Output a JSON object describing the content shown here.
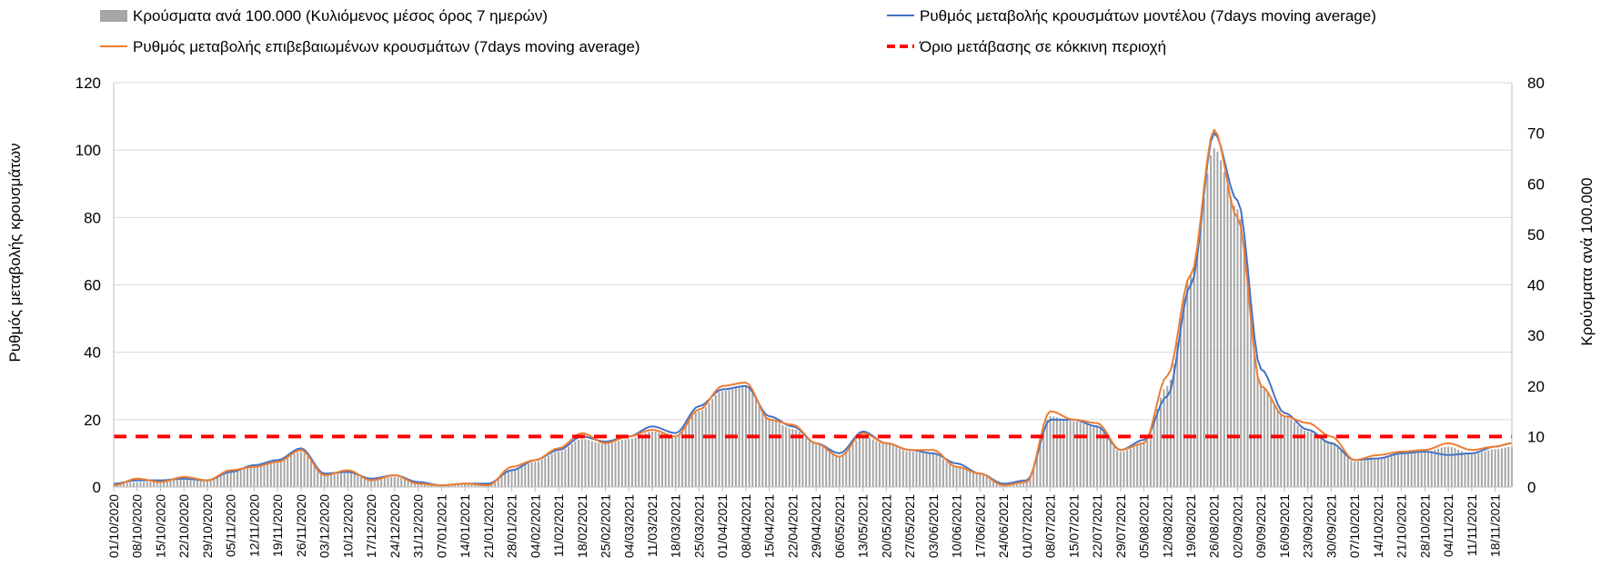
{
  "chart_data": {
    "type": "line",
    "title": "",
    "legend": {
      "placement": "top",
      "items": [
        {
          "key": "bars",
          "label": "Κρούσματα ανά 100.000 (Κυλιόμενος μέσος όρος 7 ημερών)",
          "color": "#a6a6a6",
          "style": "bar"
        },
        {
          "key": "model",
          "label": "Ρυθμός μεταβολής κρουσμάτων μοντέλου (7days moving average)",
          "color": "#4472c4",
          "style": "line"
        },
        {
          "key": "confirmed",
          "label": "Ρυθμός μεταβολής επιβεβαιωμένων κρουσμάτων (7days moving average)",
          "color": "#ed7d31",
          "style": "line"
        },
        {
          "key": "threshold",
          "label": "Όριο μετάβασης σε κόκκινη περιοχή",
          "color": "#ff0000",
          "style": "dashed"
        }
      ]
    },
    "y_left": {
      "label": "Ρυθμός μεταβολής κρουσμάτων",
      "min": 0,
      "max": 120,
      "ticks": [
        "0",
        "20",
        "40",
        "60",
        "80",
        "100",
        "120"
      ]
    },
    "y_right": {
      "label": "Κρούσματα ανά 100.000",
      "min": 0,
      "max": 80,
      "ticks": [
        "0",
        "10",
        "20",
        "30",
        "40",
        "50",
        "60",
        "70",
        "80"
      ]
    },
    "x_start": "2020-10-01",
    "x_end": "2021-11-23",
    "x_tick_labels": [
      "01/10/2020",
      "08/10/2020",
      "15/10/2020",
      "22/10/2020",
      "29/10/2020",
      "05/11/2020",
      "12/11/2020",
      "19/11/2020",
      "26/11/2020",
      "03/12/2020",
      "10/12/2020",
      "17/12/2020",
      "24/12/2020",
      "31/12/2020",
      "07/01/2021",
      "14/01/2021",
      "21/01/2021",
      "28/01/2021",
      "04/02/2021",
      "11/02/2021",
      "18/02/2021",
      "25/02/2021",
      "04/03/2021",
      "11/03/2021",
      "18/03/2021",
      "25/03/2021",
      "01/04/2021",
      "08/04/2021",
      "15/04/2021",
      "22/04/2021",
      "29/04/2021",
      "06/05/2021",
      "13/05/2021",
      "20/05/2021",
      "27/05/2021",
      "03/06/2021",
      "10/06/2021",
      "17/06/2021",
      "24/06/2021",
      "01/07/2021",
      "08/07/2021",
      "15/07/2021",
      "22/07/2021",
      "29/07/2021",
      "05/08/2021",
      "12/08/2021",
      "19/08/2021",
      "26/08/2021",
      "02/09/2021",
      "09/09/2021",
      "16/09/2021",
      "23/09/2021",
      "30/09/2021",
      "07/10/2021",
      "14/10/2021",
      "21/10/2021",
      "28/10/2021",
      "04/11/2021",
      "11/11/2021",
      "18/11/2021"
    ],
    "series": [
      {
        "name": "Ρυθμός μεταβολής κρουσμάτων μοντέλου (7days moving average)",
        "axis": "left",
        "points": [
          [
            "2020-10-01",
            1
          ],
          [
            "2020-10-08",
            2
          ],
          [
            "2020-10-15",
            2
          ],
          [
            "2020-10-22",
            2.5
          ],
          [
            "2020-10-29",
            2
          ],
          [
            "2020-11-05",
            4.5
          ],
          [
            "2020-11-12",
            6.5
          ],
          [
            "2020-11-19",
            8
          ],
          [
            "2020-11-26",
            11.5
          ],
          [
            "2020-12-03",
            4
          ],
          [
            "2020-12-10",
            4.5
          ],
          [
            "2020-12-17",
            2.5
          ],
          [
            "2020-12-24",
            3.5
          ],
          [
            "2020-12-31",
            1.5
          ],
          [
            "2021-01-07",
            0.5
          ],
          [
            "2021-01-14",
            1
          ],
          [
            "2021-01-21",
            1
          ],
          [
            "2021-01-28",
            5
          ],
          [
            "2021-02-04",
            8
          ],
          [
            "2021-02-11",
            11
          ],
          [
            "2021-02-18",
            15
          ],
          [
            "2021-02-25",
            13.5
          ],
          [
            "2021-03-04",
            15
          ],
          [
            "2021-03-11",
            18
          ],
          [
            "2021-03-18",
            16
          ],
          [
            "2021-03-25",
            24
          ],
          [
            "2021-04-01",
            29
          ],
          [
            "2021-04-08",
            30
          ],
          [
            "2021-04-15",
            21
          ],
          [
            "2021-04-22",
            18
          ],
          [
            "2021-04-29",
            13
          ],
          [
            "2021-05-06",
            10
          ],
          [
            "2021-05-13",
            16.5
          ],
          [
            "2021-05-20",
            13
          ],
          [
            "2021-05-27",
            11
          ],
          [
            "2021-06-03",
            10
          ],
          [
            "2021-06-10",
            7
          ],
          [
            "2021-06-17",
            4
          ],
          [
            "2021-06-24",
            1
          ],
          [
            "2021-07-01",
            2
          ],
          [
            "2021-07-08",
            20
          ],
          [
            "2021-07-15",
            20
          ],
          [
            "2021-07-22",
            18
          ],
          [
            "2021-07-29",
            11
          ],
          [
            "2021-08-05",
            14
          ],
          [
            "2021-08-12",
            27
          ],
          [
            "2021-08-19",
            60
          ],
          [
            "2021-08-26",
            105
          ],
          [
            "2021-09-02",
            85
          ],
          [
            "2021-09-09",
            35
          ],
          [
            "2021-09-16",
            22
          ],
          [
            "2021-09-23",
            17
          ],
          [
            "2021-09-30",
            13
          ],
          [
            "2021-10-07",
            8
          ],
          [
            "2021-10-14",
            8.5
          ],
          [
            "2021-10-21",
            10
          ],
          [
            "2021-10-28",
            10.5
          ],
          [
            "2021-11-04",
            9.5
          ],
          [
            "2021-11-11",
            10
          ],
          [
            "2021-11-18",
            12
          ],
          [
            "2021-11-23",
            13
          ]
        ]
      },
      {
        "name": "Ρυθμός μεταβολής επιβεβαιωμένων κρουσμάτων (7days moving average)",
        "axis": "left",
        "points": [
          [
            "2020-10-01",
            0.5
          ],
          [
            "2020-10-08",
            2.5
          ],
          [
            "2020-10-15",
            1.5
          ],
          [
            "2020-10-22",
            3
          ],
          [
            "2020-10-29",
            2
          ],
          [
            "2020-11-05",
            5
          ],
          [
            "2020-11-12",
            6
          ],
          [
            "2020-11-19",
            7.5
          ],
          [
            "2020-11-26",
            11
          ],
          [
            "2020-12-03",
            3.5
          ],
          [
            "2020-12-10",
            5
          ],
          [
            "2020-12-17",
            2
          ],
          [
            "2020-12-24",
            3.5
          ],
          [
            "2020-12-31",
            1
          ],
          [
            "2021-01-07",
            0.5
          ],
          [
            "2021-01-14",
            1
          ],
          [
            "2021-01-21",
            0.5
          ],
          [
            "2021-01-28",
            6
          ],
          [
            "2021-02-04",
            8
          ],
          [
            "2021-02-11",
            11.5
          ],
          [
            "2021-02-18",
            16
          ],
          [
            "2021-02-25",
            13
          ],
          [
            "2021-03-04",
            15
          ],
          [
            "2021-03-11",
            17
          ],
          [
            "2021-03-18",
            15
          ],
          [
            "2021-03-25",
            23
          ],
          [
            "2021-04-01",
            30
          ],
          [
            "2021-04-08",
            31
          ],
          [
            "2021-04-15",
            20
          ],
          [
            "2021-04-22",
            18.5
          ],
          [
            "2021-04-29",
            13
          ],
          [
            "2021-05-06",
            9
          ],
          [
            "2021-05-13",
            16
          ],
          [
            "2021-05-20",
            13
          ],
          [
            "2021-05-27",
            11
          ],
          [
            "2021-06-03",
            11
          ],
          [
            "2021-06-10",
            6
          ],
          [
            "2021-06-17",
            4
          ],
          [
            "2021-06-24",
            0.5
          ],
          [
            "2021-07-01",
            1.5
          ],
          [
            "2021-07-08",
            22.5
          ],
          [
            "2021-07-15",
            20
          ],
          [
            "2021-07-22",
            19
          ],
          [
            "2021-07-29",
            11
          ],
          [
            "2021-08-05",
            13
          ],
          [
            "2021-08-12",
            33
          ],
          [
            "2021-08-19",
            63
          ],
          [
            "2021-08-26",
            106
          ],
          [
            "2021-09-02",
            80
          ],
          [
            "2021-09-09",
            30
          ],
          [
            "2021-09-16",
            21
          ],
          [
            "2021-09-23",
            19
          ],
          [
            "2021-09-30",
            15
          ],
          [
            "2021-10-07",
            8
          ],
          [
            "2021-10-14",
            9.5
          ],
          [
            "2021-10-21",
            10.5
          ],
          [
            "2021-10-28",
            11
          ],
          [
            "2021-11-04",
            13
          ],
          [
            "2021-11-11",
            11
          ],
          [
            "2021-11-18",
            12
          ],
          [
            "2021-11-23",
            13
          ]
        ]
      },
      {
        "name": "Κρούσματα ανά 100.000 (Κυλιόμενος μέσος όρος 7 ημερών)",
        "axis": "right",
        "points": [
          [
            "2020-10-01",
            0.5
          ],
          [
            "2020-10-08",
            1
          ],
          [
            "2020-10-15",
            1
          ],
          [
            "2020-10-22",
            1.5
          ],
          [
            "2020-10-29",
            1.2
          ],
          [
            "2020-11-05",
            3
          ],
          [
            "2020-11-12",
            4
          ],
          [
            "2020-11-19",
            5
          ],
          [
            "2020-11-26",
            7
          ],
          [
            "2020-12-03",
            2.5
          ],
          [
            "2020-12-10",
            3
          ],
          [
            "2020-12-17",
            1.5
          ],
          [
            "2020-12-24",
            2
          ],
          [
            "2020-12-31",
            1
          ],
          [
            "2021-01-07",
            0.4
          ],
          [
            "2021-01-14",
            0.5
          ],
          [
            "2021-01-21",
            0.5
          ],
          [
            "2021-01-28",
            3.5
          ],
          [
            "2021-02-04",
            5
          ],
          [
            "2021-02-11",
            7
          ],
          [
            "2021-02-18",
            9.5
          ],
          [
            "2021-02-25",
            8.5
          ],
          [
            "2021-03-04",
            9.5
          ],
          [
            "2021-03-11",
            11
          ],
          [
            "2021-03-18",
            10
          ],
          [
            "2021-03-25",
            15
          ],
          [
            "2021-04-01",
            19
          ],
          [
            "2021-04-08",
            20
          ],
          [
            "2021-04-15",
            13.5
          ],
          [
            "2021-04-22",
            11.5
          ],
          [
            "2021-04-29",
            8.5
          ],
          [
            "2021-05-06",
            6
          ],
          [
            "2021-05-13",
            10
          ],
          [
            "2021-05-20",
            8.5
          ],
          [
            "2021-05-27",
            7
          ],
          [
            "2021-06-03",
            6.5
          ],
          [
            "2021-06-10",
            4
          ],
          [
            "2021-06-17",
            2.5
          ],
          [
            "2021-06-24",
            0.5
          ],
          [
            "2021-07-01",
            1
          ],
          [
            "2021-07-08",
            14
          ],
          [
            "2021-07-15",
            13
          ],
          [
            "2021-07-22",
            12
          ],
          [
            "2021-07-29",
            7
          ],
          [
            "2021-08-05",
            8.5
          ],
          [
            "2021-08-12",
            20
          ],
          [
            "2021-08-19",
            42
          ],
          [
            "2021-08-26",
            67
          ],
          [
            "2021-09-02",
            55
          ],
          [
            "2021-09-09",
            20
          ],
          [
            "2021-09-16",
            14
          ],
          [
            "2021-09-23",
            11
          ],
          [
            "2021-09-30",
            9
          ],
          [
            "2021-10-07",
            5
          ],
          [
            "2021-10-14",
            5.5
          ],
          [
            "2021-10-21",
            6.5
          ],
          [
            "2021-10-28",
            7
          ],
          [
            "2021-11-04",
            8
          ],
          [
            "2021-11-11",
            6.5
          ],
          [
            "2021-11-18",
            7.5
          ],
          [
            "2021-11-23",
            8
          ]
        ]
      },
      {
        "name": "Όριο μετάβασης σε κόκκινη περιοχή",
        "axis": "left",
        "constant": 15
      }
    ]
  }
}
